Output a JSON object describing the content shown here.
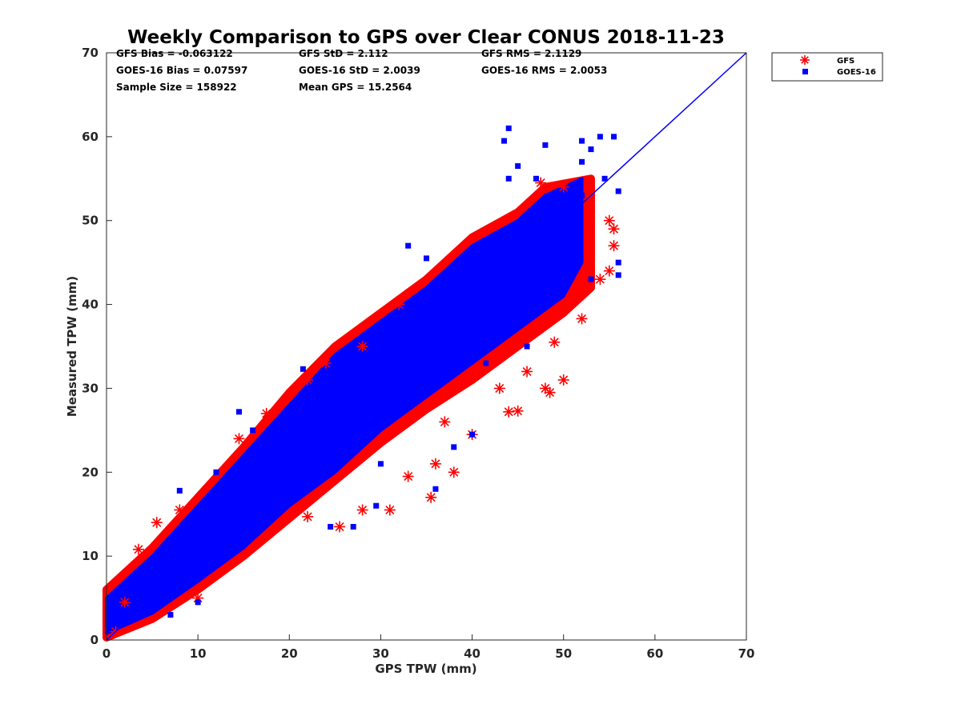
{
  "chart_data": {
    "type": "scatter",
    "title": "Weekly Comparison to GPS over Clear CONUS 2018-11-23",
    "xlabel": "GPS TPW (mm)",
    "ylabel": "Measured TPW (mm)",
    "xlim": [
      0,
      70
    ],
    "ylim": [
      0,
      70
    ],
    "xticks": [
      "0",
      "10",
      "20",
      "30",
      "40",
      "50",
      "60",
      "70"
    ],
    "yticks": [
      "0",
      "10",
      "20",
      "30",
      "40",
      "50",
      "60",
      "70"
    ],
    "grid": false,
    "legend_placement": "outside-top-right",
    "stats": [
      "GFS Bias = -0.063122",
      "GFS StD = 2.112",
      "GFS RMS = 2.1129",
      "GOES-16 Bias = 0.07597",
      "GOES-16 StD = 2.0039",
      "GOES-16 RMS = 2.0053",
      "Sample Size = 158922",
      "Mean GPS = 15.2564"
    ],
    "reference_line": {
      "name": "1:1 line",
      "x": [
        0,
        70
      ],
      "y": [
        0,
        70
      ],
      "color": "#0000ff"
    },
    "series": [
      {
        "name": "GFS",
        "marker": "asterisk",
        "color": "#ff0000",
        "dense_band": {
          "lower": [
            [
              0,
              0.3
            ],
            [
              5,
              2.5
            ],
            [
              10,
              6
            ],
            [
              15,
              10
            ],
            [
              20,
              14.5
            ],
            [
              25,
              19
            ],
            [
              30,
              23.5
            ],
            [
              35,
              27.5
            ],
            [
              40,
              31
            ],
            [
              45,
              35
            ],
            [
              50,
              39
            ],
            [
              53,
              42
            ]
          ],
          "upper": [
            [
              53,
              55
            ],
            [
              48,
              54
            ],
            [
              45,
              51
            ],
            [
              40,
              48
            ],
            [
              35,
              43
            ],
            [
              30,
              39
            ],
            [
              25,
              35
            ],
            [
              20,
              29.5
            ],
            [
              15,
              23
            ],
            [
              10,
              17
            ],
            [
              5,
              11
            ],
            [
              0,
              6
            ]
          ]
        },
        "points": [
          [
            3.5,
            10.8
          ],
          [
            5.5,
            14
          ],
          [
            8,
            15.5
          ],
          [
            14.5,
            24
          ],
          [
            17.5,
            27
          ],
          [
            22,
            31
          ],
          [
            24,
            33
          ],
          [
            28,
            35
          ],
          [
            32,
            40
          ],
          [
            40,
            24.5
          ],
          [
            35.5,
            17
          ],
          [
            31,
            15.5
          ],
          [
            25.5,
            13.5
          ],
          [
            38,
            20
          ],
          [
            44,
            27.2
          ],
          [
            45,
            27.3
          ],
          [
            48,
            30
          ],
          [
            48.5,
            29.5
          ],
          [
            50,
            31
          ],
          [
            52,
            38.3
          ],
          [
            55,
            44
          ],
          [
            55.5,
            47
          ],
          [
            55.5,
            49
          ],
          [
            50,
            54
          ],
          [
            47.5,
            54.5
          ],
          [
            10,
            5
          ],
          [
            22,
            14.7
          ],
          [
            28,
            15.5
          ],
          [
            33,
            19.5
          ],
          [
            36,
            21
          ],
          [
            43,
            30
          ],
          [
            49,
            35.5
          ],
          [
            55,
            50
          ],
          [
            37,
            26
          ],
          [
            46,
            32
          ],
          [
            54,
            43
          ],
          [
            1,
            1
          ],
          [
            2,
            4.5
          ]
        ]
      },
      {
        "name": "GOES-16",
        "marker": "square",
        "color": "#0000ff",
        "dense_band": {
          "lower": [
            [
              0,
              0.8
            ],
            [
              5,
              3.2
            ],
            [
              10,
              7
            ],
            [
              15,
              11
            ],
            [
              20,
              16
            ],
            [
              25,
              20
            ],
            [
              30,
              25
            ],
            [
              35,
              29
            ],
            [
              40,
              33
            ],
            [
              45,
              37
            ],
            [
              50,
              41
            ],
            [
              52,
              45
            ]
          ],
          "upper": [
            [
              52,
              55
            ],
            [
              48,
              53
            ],
            [
              45,
              50
            ],
            [
              40,
              47
            ],
            [
              35,
              42
            ],
            [
              30,
              38
            ],
            [
              25,
              34
            ],
            [
              20,
              28
            ],
            [
              15,
              22
            ],
            [
              10,
              16
            ],
            [
              5,
              10
            ],
            [
              0,
              5
            ]
          ]
        },
        "points": [
          [
            44,
            61
          ],
          [
            43.5,
            59.5
          ],
          [
            48,
            59
          ],
          [
            52,
            59.5
          ],
          [
            54,
            60
          ],
          [
            55.5,
            60
          ],
          [
            53,
            58.5
          ],
          [
            45,
            56.5
          ],
          [
            44,
            55
          ],
          [
            52,
            57
          ],
          [
            54.5,
            55
          ],
          [
            56,
            53.5
          ],
          [
            33,
            47
          ],
          [
            35,
            45.5
          ],
          [
            40,
            24.5
          ],
          [
            14.5,
            27.2
          ],
          [
            21.5,
            32.3
          ],
          [
            24.5,
            13.5
          ],
          [
            38,
            23
          ],
          [
            41.5,
            33
          ],
          [
            46,
            35
          ],
          [
            52,
            53
          ],
          [
            47,
            55
          ],
          [
            56,
            45
          ],
          [
            56,
            43.5
          ],
          [
            53,
            43
          ],
          [
            8,
            17.8
          ],
          [
            12,
            20
          ],
          [
            16,
            25
          ],
          [
            30,
            21
          ],
          [
            29.5,
            16
          ],
          [
            36,
            18
          ],
          [
            27,
            13.5
          ],
          [
            7,
            3
          ],
          [
            10,
            4.5
          ]
        ]
      }
    ]
  }
}
